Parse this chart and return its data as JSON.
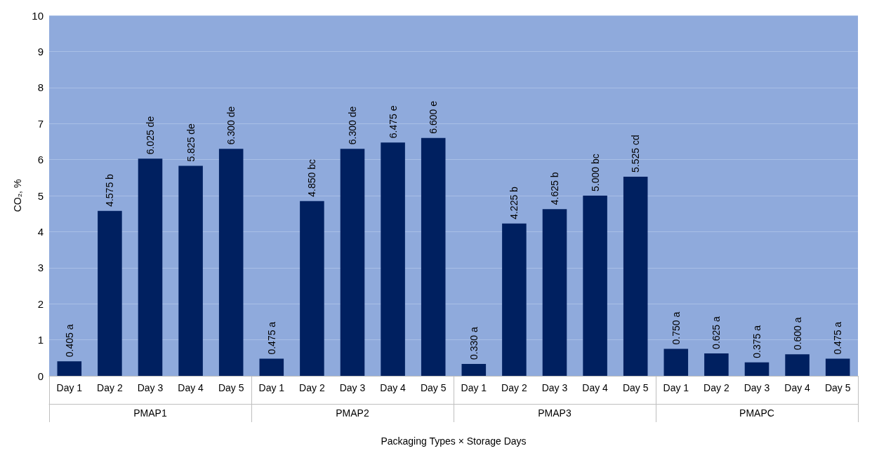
{
  "chart_data": {
    "type": "bar",
    "categories": [
      "Day 1",
      "Day 2",
      "Day 3",
      "Day 4",
      "Day 5",
      "Day 1",
      "Day 2",
      "Day 3",
      "Day 4",
      "Day 5",
      "Day 1",
      "Day 2",
      "Day 3",
      "Day 4",
      "Day 5",
      "Day 1",
      "Day 2",
      "Day 3",
      "Day 4",
      "Day 5"
    ],
    "values": [
      0.405,
      4.575,
      6.025,
      5.825,
      6.3,
      0.475,
      4.85,
      6.3,
      6.475,
      6.6,
      0.33,
      4.225,
      4.625,
      5.0,
      5.525,
      0.75,
      0.625,
      0.375,
      0.6,
      0.475
    ],
    "value_labels": [
      "0.405 a",
      "4.575 b",
      "6.025 de",
      "5.825 de",
      "6.300 de",
      "0.475 a",
      "4.850 bc",
      "6.300 de",
      "6.475 e",
      "6.600 e",
      "0.330 a",
      "4.225 b",
      "4.625 b",
      "5.000 bc",
      "5.525 cd",
      "0.750 a",
      "0.625 a",
      "0.375 a",
      "0.600 a",
      "0.475 a"
    ],
    "color": "#002060",
    "annotations": [
      "PMAP1",
      "PMAP2",
      "PMAP3",
      "PMAPC"
    ],
    "xlabel": "Packaging Types × Storage Days",
    "ylabel": "CO₂, %",
    "ylim": [
      0,
      10
    ],
    "yticks": [
      0,
      1,
      2,
      3,
      4,
      5,
      6,
      7,
      8,
      9,
      10
    ],
    "grid": "y"
  }
}
